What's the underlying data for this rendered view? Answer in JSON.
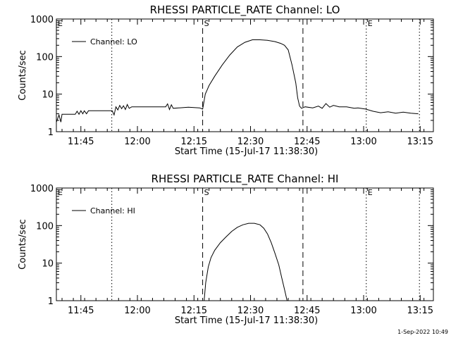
{
  "footer": {
    "timestamp": "1-Sep-2022 10:49"
  },
  "chart_data": [
    {
      "type": "line",
      "title": "RHESSI PARTICLE_RATE Channel: LO",
      "xlabel": "Start Time (15-Jul-17 11:38:30)",
      "ylabel": "Counts/sec",
      "xlim_minutes_after_start": [
        0,
        100
      ],
      "ylim": [
        1,
        1000
      ],
      "y_log": true,
      "y_ticks": [
        1,
        10,
        100,
        1000
      ],
      "y_tick_labels": [
        "1",
        "10",
        "100",
        "1000"
      ],
      "x_tick_labels": [
        "11:45",
        "12:00",
        "12:15",
        "12:30",
        "12:45",
        "13:00",
        "13:15"
      ],
      "x_tick_minutes_after_start": [
        6.5,
        21.5,
        36.5,
        51.5,
        66.5,
        81.5,
        96.5
      ],
      "legend": {
        "position": "top-left",
        "label": "Channel: LO"
      },
      "markers": [
        {
          "minute": 0,
          "style": "dotted",
          "label": "E"
        },
        {
          "minute": 14.7,
          "style": "dotted",
          "label": ""
        },
        {
          "minute": 38.8,
          "style": "dashed",
          "label": "S"
        },
        {
          "minute": 65.4,
          "style": "dashed",
          "label": ""
        },
        {
          "minute": 82.2,
          "style": "dotted",
          "label": "E"
        },
        {
          "minute": 96.3,
          "style": "dotted",
          "label": ""
        }
      ],
      "series": [
        {
          "name": "Channel: LO",
          "x": [
            0,
            0.7,
            1.2,
            1.5,
            5,
            5.5,
            6,
            6.5,
            7,
            7.4,
            8,
            8.5,
            10,
            14.8,
            15.3,
            15.8,
            16.3,
            16.8,
            17.3,
            17.8,
            18.3,
            18.8,
            19.3,
            20,
            25,
            29,
            29.5,
            30,
            30.5,
            31,
            35,
            38,
            38.8,
            39.5,
            40.5,
            42,
            44,
            46,
            48,
            50,
            52,
            54,
            56,
            58,
            59.5,
            60.5,
            61.5,
            62.5,
            63.5,
            64,
            64.5,
            65,
            66,
            68,
            69.5,
            70.5,
            71.5,
            72.5,
            73.5,
            75,
            77,
            79,
            80,
            82,
            84,
            86,
            88,
            90,
            92,
            94,
            96
          ],
          "values": [
            1.8,
            2.8,
            1.8,
            2.9,
            2.9,
            3.5,
            2.9,
            3.6,
            3.0,
            3.6,
            3.0,
            3.6,
            3.6,
            3.6,
            2.8,
            4.6,
            3.8,
            5.0,
            4.1,
            4.9,
            3.9,
            5.3,
            4.2,
            4.6,
            4.6,
            4.6,
            5.5,
            3.9,
            5.2,
            4.2,
            4.5,
            4.3,
            4.0,
            10,
            17,
            30,
            60,
            110,
            180,
            240,
            280,
            280,
            270,
            250,
            225,
            200,
            150,
            60,
            20,
            8,
            4.8,
            4.2,
            4.6,
            4.3,
            4.8,
            4.2,
            5.6,
            4.5,
            5.0,
            4.6,
            4.6,
            4.2,
            4.3,
            4.0,
            3.5,
            3.2,
            3.4,
            3.1,
            3.3,
            3.1,
            3.0
          ]
        }
      ]
    },
    {
      "type": "line",
      "title": "RHESSI PARTICLE_RATE Channel: HI",
      "xlabel": "Start Time (15-Jul-17 11:38:30)",
      "ylabel": "Counts/sec",
      "xlim_minutes_after_start": [
        0,
        100
      ],
      "ylim": [
        1,
        1000
      ],
      "y_log": true,
      "y_ticks": [
        1,
        10,
        100,
        1000
      ],
      "y_tick_labels": [
        "1",
        "10",
        "100",
        "1000"
      ],
      "x_tick_labels": [
        "11:45",
        "12:00",
        "12:15",
        "12:30",
        "12:45",
        "13:00",
        "13:15"
      ],
      "x_tick_minutes_after_start": [
        6.5,
        21.5,
        36.5,
        51.5,
        66.5,
        81.5,
        96.5
      ],
      "legend": {
        "position": "top-left",
        "label": "Channel: HI"
      },
      "markers": [
        {
          "minute": 0,
          "style": "dotted",
          "label": "E"
        },
        {
          "minute": 14.7,
          "style": "dotted",
          "label": ""
        },
        {
          "minute": 38.8,
          "style": "dashed",
          "label": "S"
        },
        {
          "minute": 65.4,
          "style": "dashed",
          "label": ""
        },
        {
          "minute": 82.2,
          "style": "dotted",
          "label": "E"
        },
        {
          "minute": 96.3,
          "style": "dotted",
          "label": ""
        }
      ],
      "series": [
        {
          "name": "Channel: HI",
          "x": [
            39.2,
            39.6,
            40.3,
            41,
            42,
            43.5,
            45,
            46.5,
            48,
            49.5,
            51,
            52.5,
            54,
            55,
            56,
            57,
            58,
            59,
            59.8,
            60.5,
            61.2
          ],
          "values": [
            1,
            3,
            8,
            14,
            22,
            35,
            50,
            70,
            90,
            105,
            115,
            115,
            105,
            85,
            60,
            35,
            18,
            9,
            4,
            2,
            1
          ]
        }
      ]
    }
  ]
}
